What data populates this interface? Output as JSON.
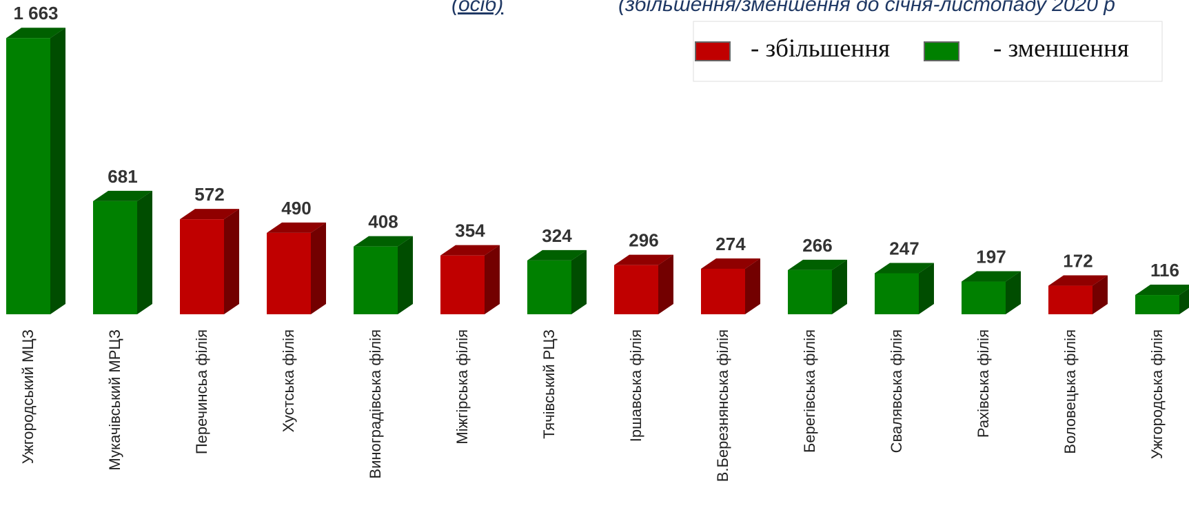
{
  "chart_data": {
    "type": "bar3d",
    "subtitle": "(осіб)",
    "title": "(збільшення/зменшення до січня-листопаду 2020 р",
    "categories": [
      "Ужгородський МЦЗ",
      "Мукачівський МРЦЗ",
      "Перечинсьа філія",
      "Хустська філія",
      "Виноградівська філія",
      "Міжгірська філія",
      "Тячівський РЦЗ",
      "Іршавська філія",
      "В.Березнянська філія",
      "Берегівська філія",
      "Свалявська філія",
      "Рахівська філія",
      "Воловецька філія",
      "Ужгородська філія"
    ],
    "values": [
      1663,
      681,
      572,
      490,
      408,
      354,
      324,
      296,
      274,
      266,
      247,
      197,
      172,
      116
    ],
    "value_labels": [
      "1 663",
      "681",
      "572",
      "490",
      "408",
      "354",
      "324",
      "296",
      "274",
      "266",
      "247",
      "197",
      "172",
      "116"
    ],
    "colors": [
      "#008000",
      "#008000",
      "#c00000",
      "#c00000",
      "#008000",
      "#c00000",
      "#008000",
      "#c00000",
      "#c00000",
      "#008000",
      "#008000",
      "#008000",
      "#c00000",
      "#008000"
    ],
    "legend": [
      {
        "name": "- збільшення",
        "color": "#c00000"
      },
      {
        "name": "- зменшення",
        "color": "#008000"
      }
    ]
  }
}
